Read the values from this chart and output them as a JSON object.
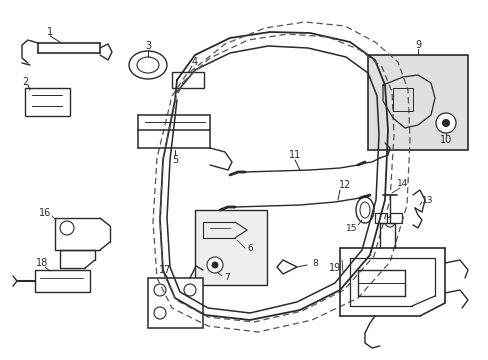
{
  "background_color": "#ffffff",
  "fig_width": 4.89,
  "fig_height": 3.6,
  "dpi": 100,
  "lc": "#2a2a2a",
  "dc": "#555555",
  "box9_fill": "#e0e0e0",
  "box67_fill": "#eeeeee",
  "font_size": 7.0
}
